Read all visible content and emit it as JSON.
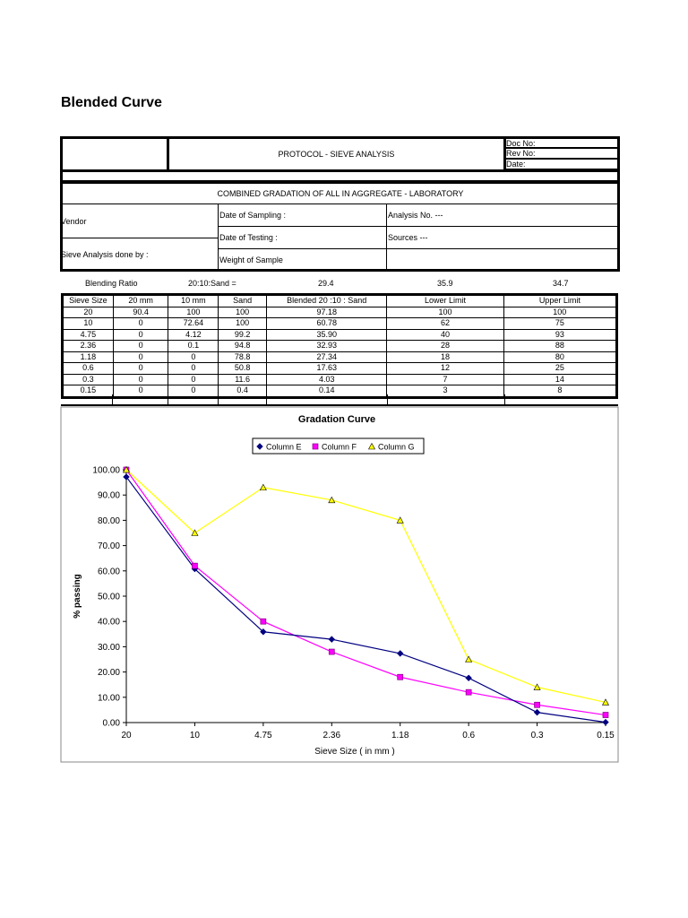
{
  "title": "Blended Curve",
  "header": {
    "protocol": "PROTOCOL - SIEVE ANALYSIS",
    "doc_no": "Doc No:",
    "rev_no": "Rev No:",
    "date": "Date:"
  },
  "info": {
    "combined": "COMBINED GRADATION OF ALL IN AGGREGATE - LABORATORY",
    "vendor": "Vendor",
    "done_by": "Sieve Analysis done by :",
    "date_sampling": "Date of Sampling :",
    "date_testing": "Date of Testing  :",
    "weight": "Weight of Sample",
    "analysis_no": "Analysis No. ---",
    "sources": "Sources ---"
  },
  "blending": {
    "label": "Blending Ratio",
    "formula": "20:10:Sand =",
    "v1": "29.4",
    "v2": "35.9",
    "v3": "34.7"
  },
  "table": {
    "headers": [
      "Sieve Size",
      "20 mm",
      "10 mm",
      "Sand",
      "Blended 20 :10 : Sand",
      "Lower Limit",
      "Upper Limit"
    ],
    "rows": [
      [
        "20",
        "90.4",
        "100",
        "100",
        "97.18",
        "100",
        "100"
      ],
      [
        "10",
        "0",
        "72.64",
        "100",
        "60.78",
        "62",
        "75"
      ],
      [
        "4.75",
        "0",
        "4.12",
        "99.2",
        "35.90",
        "40",
        "93"
      ],
      [
        "2.36",
        "0",
        "0.1",
        "94.8",
        "32.93",
        "28",
        "88"
      ],
      [
        "1.18",
        "0",
        "0",
        "78.8",
        "27.34",
        "18",
        "80"
      ],
      [
        "0.6",
        "0",
        "0",
        "50.8",
        "17.63",
        "12",
        "25"
      ],
      [
        "0.3",
        "0",
        "0",
        "11.6",
        "4.03",
        "7",
        "14"
      ],
      [
        "0.15",
        "0",
        "0",
        "0.4",
        "0.14",
        "3",
        "8"
      ]
    ]
  },
  "chart_data": {
    "type": "line",
    "title": "Gradation Curve",
    "xlabel": "Sieve Size ( in mm )",
    "ylabel": "% passing",
    "categories": [
      "20",
      "10",
      "4.75",
      "2.36",
      "1.18",
      "0.6",
      "0.3",
      "0.15"
    ],
    "ylim": [
      0,
      100
    ],
    "yticks": [
      "0.00",
      "10.00",
      "20.00",
      "30.00",
      "40.00",
      "50.00",
      "60.00",
      "70.00",
      "80.00",
      "90.00",
      "100.00"
    ],
    "legend": "top-center",
    "series": [
      {
        "name": "Column E",
        "color": "#000080",
        "marker": "diamond",
        "values": [
          97.18,
          60.78,
          35.9,
          32.93,
          27.34,
          17.63,
          4.03,
          0.14
        ]
      },
      {
        "name": "Column F",
        "color": "#FF00FF",
        "marker": "square",
        "values": [
          100,
          62,
          40,
          28,
          18,
          12,
          7,
          3
        ]
      },
      {
        "name": "Column G",
        "color": "#FFFF00",
        "marker": "triangle",
        "values": [
          100,
          75,
          93,
          88,
          80,
          25,
          14,
          8
        ]
      }
    ]
  }
}
